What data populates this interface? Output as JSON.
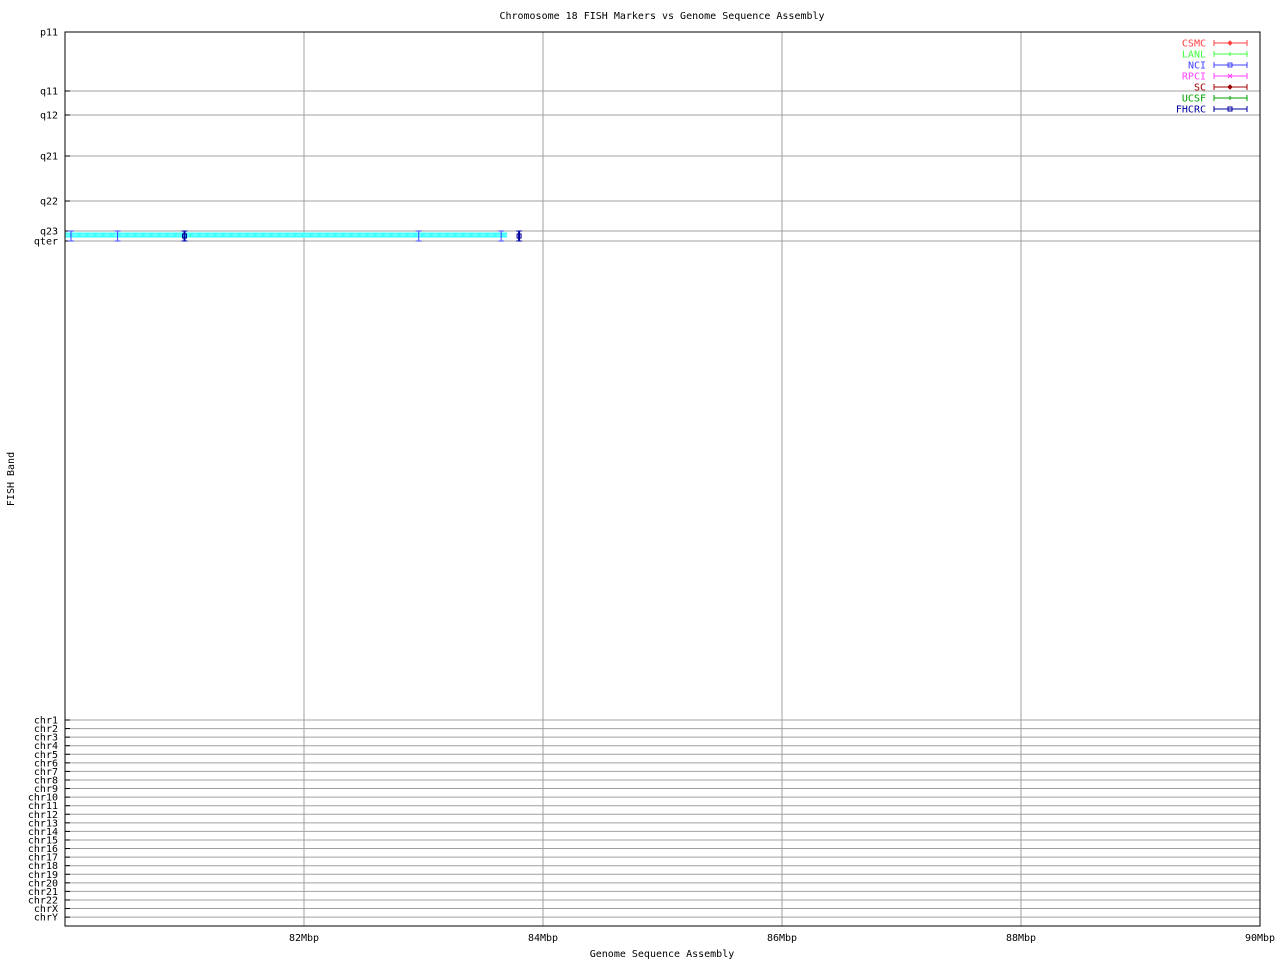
{
  "chart_data": {
    "type": "scatter",
    "title": "Chromosome 18 FISH Markers vs Genome Sequence Assembly",
    "xlabel": "Genome Sequence Assembly",
    "ylabel": "FISH Band",
    "xlim": [
      80,
      90
    ],
    "x_ticks": [
      {
        "value": 82,
        "label": "82Mbp"
      },
      {
        "value": 84,
        "label": "84Mbp"
      },
      {
        "value": 86,
        "label": "86Mbp"
      },
      {
        "value": 88,
        "label": "88Mbp"
      },
      {
        "value": 90,
        "label": "90Mbp"
      }
    ],
    "band_ticks": [
      "p11",
      "q11",
      "q12",
      "q21",
      "q22",
      "q23",
      "qter"
    ],
    "chr_ticks": [
      "chr1",
      "chr2",
      "chr3",
      "chr4",
      "chr5",
      "chr6",
      "chr7",
      "chr8",
      "chr9",
      "chr10",
      "chr11",
      "chr12",
      "chr13",
      "chr14",
      "chr15",
      "chr16",
      "chr17",
      "chr18",
      "chr19",
      "chr20",
      "chr21",
      "chr22",
      "chrX",
      "chrY"
    ],
    "grid": true,
    "legend_position": "top-right",
    "legend": [
      {
        "name": "CSMC",
        "color": "#ff4040",
        "marker": "diamond"
      },
      {
        "name": "LANL",
        "color": "#40ff40",
        "marker": "tick"
      },
      {
        "name": "NCI",
        "color": "#4040ff",
        "marker": "square"
      },
      {
        "name": "RPCI",
        "color": "#ff40ff",
        "marker": "x"
      },
      {
        "name": "SC",
        "color": "#a00000",
        "marker": "diamond"
      },
      {
        "name": "UCSF",
        "color": "#00a000",
        "marker": "tick"
      },
      {
        "name": "FHCRC",
        "color": "#0000a0",
        "marker": "square"
      }
    ],
    "sequence_band": {
      "x_start": 80.0,
      "x_end": 83.7,
      "band_from": "q23",
      "band_to": "qter",
      "color": "#40ffff"
    },
    "series": [
      {
        "name": "NCI",
        "band_from": "q23",
        "band_to": "qter",
        "x": [
          80.05,
          80.44,
          82.96,
          83.65
        ]
      },
      {
        "name": "FHCRC",
        "band_from": "q23",
        "band_to": "qter",
        "x": [
          81.0,
          83.8
        ]
      }
    ]
  }
}
